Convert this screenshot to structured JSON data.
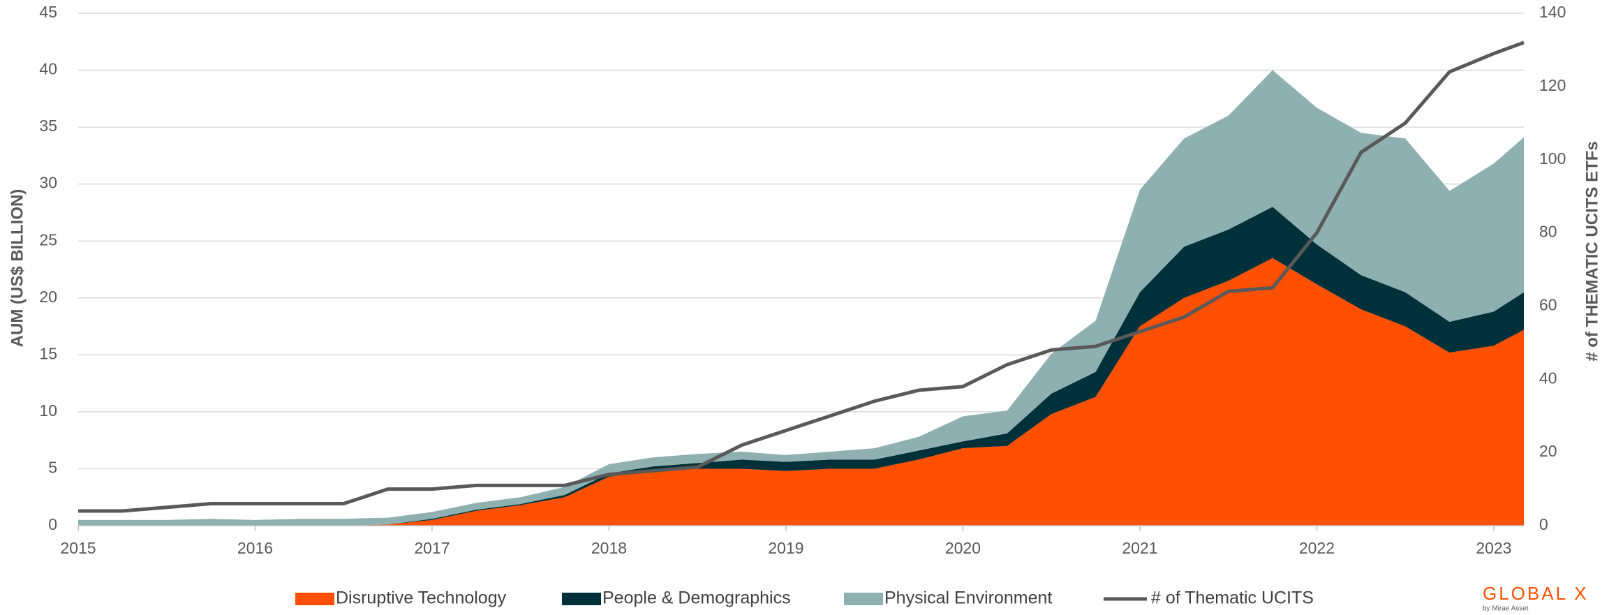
{
  "chart_data": {
    "type": "area",
    "y_label": "AUM (US$ BILLION)",
    "y2_label": "# of THEMATIC  UCITS ETFs",
    "x": [
      2015,
      2015.25,
      2015.5,
      2015.75,
      2016,
      2016.25,
      2016.5,
      2016.75,
      2017,
      2017.25,
      2017.5,
      2017.75,
      2018,
      2018.25,
      2018.5,
      2018.75,
      2019,
      2019.25,
      2019.5,
      2019.75,
      2020,
      2020.25,
      2020.5,
      2020.75,
      2021,
      2021.25,
      2021.5,
      2021.75,
      2022,
      2022.25,
      2022.5,
      2022.75,
      2023,
      2023.17
    ],
    "xlim": [
      2015,
      2023.17
    ],
    "xticks": [
      2015,
      2016,
      2017,
      2018,
      2019,
      2020,
      2021,
      2022,
      2023
    ],
    "ylim": [
      0,
      45
    ],
    "yticks": [
      0,
      5,
      10,
      15,
      20,
      25,
      30,
      35,
      40,
      45
    ],
    "y2lim": [
      0,
      140
    ],
    "y2ticks": [
      0,
      20,
      40,
      60,
      80,
      100,
      120,
      140
    ],
    "grid": true,
    "stacked": true,
    "legend": "bottom",
    "series": [
      {
        "name": "Disruptive Technology",
        "color": "#ff5000",
        "type": "area",
        "values": [
          0,
          0,
          0,
          0,
          0,
          0,
          0,
          0.1,
          0.5,
          1.3,
          1.8,
          2.5,
          4.3,
          4.8,
          5.0,
          5.0,
          4.8,
          5.0,
          5.0,
          5.8,
          6.8,
          7.0,
          9.8,
          11.3,
          17.5,
          20,
          21.5,
          23.5,
          21.2,
          19,
          17.5,
          15.2,
          15.8,
          17.2
        ]
      },
      {
        "name": "People & Demographics",
        "color": "#00303a",
        "type": "area",
        "values": [
          0,
          0,
          0,
          0,
          0,
          0,
          0,
          0,
          0.1,
          0.1,
          0.1,
          0.2,
          0.3,
          0.4,
          0.5,
          0.8,
          0.8,
          0.8,
          0.8,
          0.8,
          0.6,
          1.1,
          1.8,
          2.2,
          3.0,
          4.5,
          4.5,
          4.5,
          3.5,
          3,
          3,
          2.7,
          3,
          3.3
        ]
      },
      {
        "name": "Physical Environment",
        "color": "#8fb0b0",
        "type": "area",
        "values": [
          0.5,
          0.5,
          0.5,
          0.6,
          0.5,
          0.6,
          0.6,
          0.6,
          0.6,
          0.6,
          0.6,
          0.7,
          0.8,
          0.8,
          0.8,
          0.7,
          0.6,
          0.7,
          1.0,
          1.2,
          2.2,
          2.0,
          3.5,
          4.5,
          9,
          9.5,
          10,
          12,
          12,
          12.5,
          13.5,
          11.5,
          13,
          13.6
        ]
      },
      {
        "name": "# of Thematic UCITS",
        "color": "#595959",
        "type": "line",
        "axis": "y2",
        "values": [
          4,
          4,
          5,
          6,
          6,
          6,
          6,
          10,
          10,
          11,
          11,
          11,
          14,
          15,
          16,
          22,
          26,
          30,
          34,
          37,
          38,
          44,
          48,
          49,
          53,
          57,
          64,
          65,
          80,
          102,
          110,
          124,
          129,
          132
        ]
      }
    ]
  },
  "logo": {
    "text": "GLOBAL X",
    "subtext": "by Mirae Asset"
  }
}
